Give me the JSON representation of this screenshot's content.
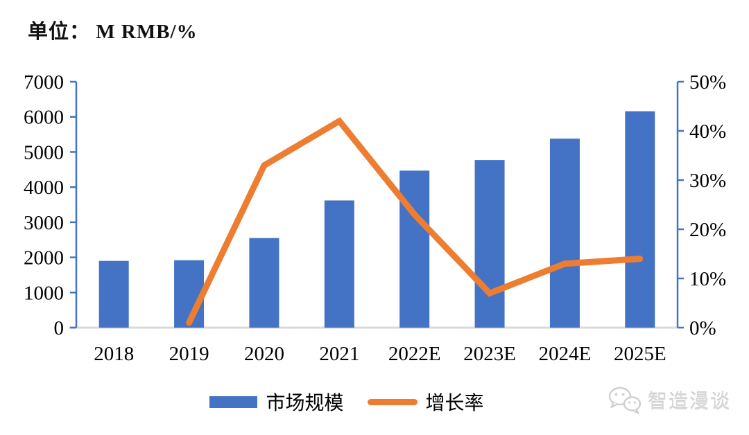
{
  "header": {
    "unit_label": "单位： M RMB/%"
  },
  "chart_data": {
    "type": "combo",
    "categories": [
      "2018",
      "2019",
      "2020",
      "2021",
      "2022E",
      "2023E",
      "2024E",
      "2025E"
    ],
    "series": [
      {
        "name": "市场规模",
        "type": "bar",
        "axis": "left",
        "values": [
          1900,
          1920,
          2550,
          3620,
          4470,
          4770,
          5380,
          6160
        ]
      },
      {
        "name": "增长率",
        "type": "line",
        "axis": "right",
        "values": [
          null,
          1,
          33,
          42,
          23,
          7,
          13,
          14
        ]
      }
    ],
    "left_axis": {
      "min": 0,
      "max": 7000,
      "ticks": [
        "0",
        "1000",
        "2000",
        "3000",
        "4000",
        "5000",
        "6000",
        "7000"
      ]
    },
    "right_axis": {
      "min": 0,
      "max": 50,
      "ticks": [
        "0%",
        "10%",
        "20%",
        "30%",
        "40%",
        "50%"
      ]
    },
    "grid": false,
    "legend_position": "bottom"
  },
  "colors": {
    "bar": "#4472C4",
    "line": "#ED7D31",
    "axis": "#4472C4",
    "baseline": "#D9D9D9",
    "text": "#000000",
    "watermark": "#CFCFCF"
  },
  "watermark": {
    "text": "智造漫谈"
  }
}
